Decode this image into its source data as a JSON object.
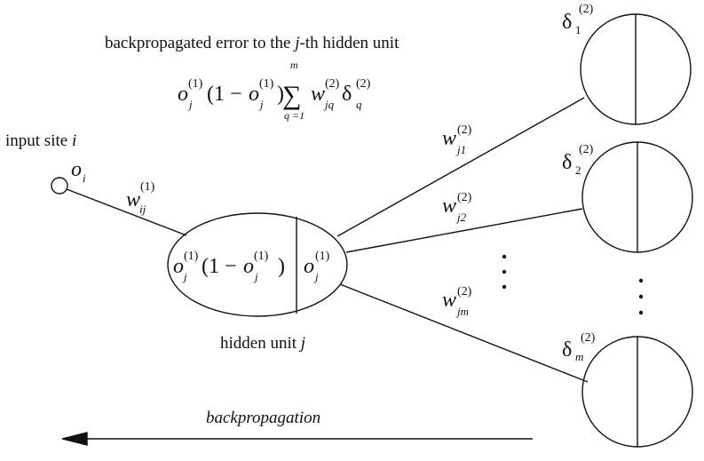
{
  "caption": {
    "prefix": "backpropagated error to the ",
    "j": "j",
    "suffix": "-th hidden unit"
  },
  "formula": {
    "o": "o",
    "sup1": "(1)",
    "sup2": "(2)",
    "j": "j",
    "one_minus": "(1 −",
    "close": ")",
    "sigma": "∑",
    "upper": "m",
    "lower": "q =1",
    "w": "w",
    "jq": "jq",
    "delta": "δ",
    "q": "q"
  },
  "input": {
    "label": "input site ",
    "i": "i",
    "o": "o",
    "sub": "i"
  },
  "weight_in": {
    "w": "w",
    "sub": "ij",
    "sup": "(1)"
  },
  "hidden": {
    "left_a": "o",
    "left_sub": "j",
    "left_sup": "(1)",
    "left_mid": "(1 −",
    "left_b": "o",
    "left_b_sub": "j",
    "left_b_sup": "(1)",
    "left_close": ")",
    "right_o": "o",
    "right_sub": "j",
    "right_sup": "(1)",
    "caption": "hidden unit ",
    "caption_j": "j"
  },
  "weights_out": [
    {
      "w": "w",
      "sub": "j1",
      "sup": "(2)"
    },
    {
      "w": "w",
      "sub": "j2",
      "sup": "(2)"
    },
    {
      "w": "w",
      "sub": "jm",
      "sup": "(2)"
    }
  ],
  "outputs": [
    {
      "delta": "δ",
      "sub": "1",
      "sup": "(2)"
    },
    {
      "delta": "δ",
      "sub": "2",
      "sup": "(2)"
    },
    {
      "delta": "δ",
      "sub": "m",
      "sup": "(2)"
    }
  ],
  "dots_symbol": "⋮",
  "arrow_label": "backpropagation"
}
